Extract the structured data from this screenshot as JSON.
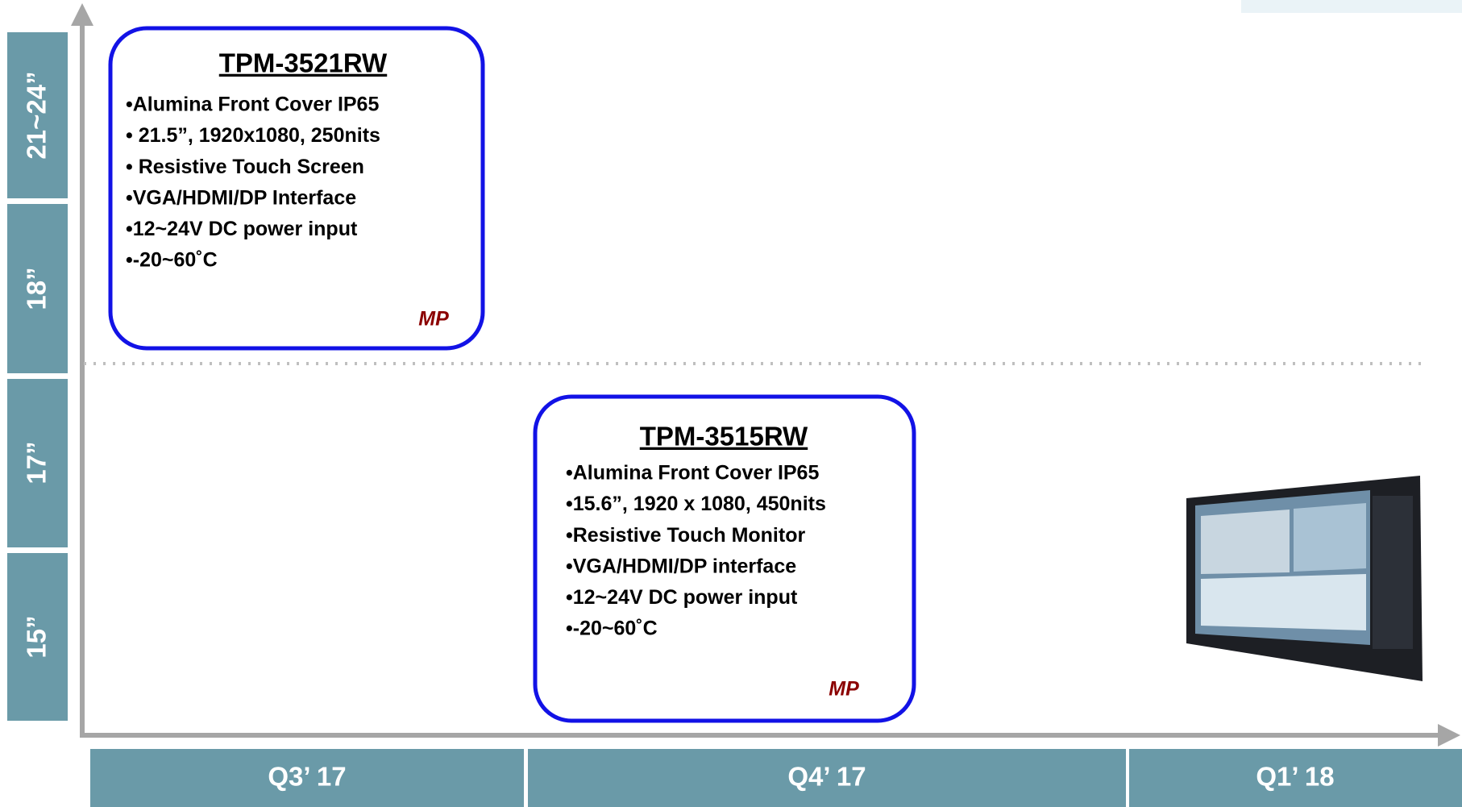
{
  "size_labels": [
    "21~24”",
    "18”",
    "17”",
    "15”"
  ],
  "quarters": [
    "Q3’ 17",
    "Q4’ 17",
    "Q1’ 18"
  ],
  "products": [
    {
      "title": "TPM-3521RW",
      "bullets": [
        "•Alumina Front Cover IP65",
        "• 21.5”,  1920x1080, 250nits",
        "• Resistive Touch Screen",
        "•VGA/HDMI/DP Interface",
        "•12~24V DC power input",
        "•-20~60˚C"
      ],
      "status": "MP"
    },
    {
      "title": "TPM-3515RW",
      "bullets": [
        "•Alumina Front Cover IP65",
        "•15.6”, 1920 x 1080, 450nits",
        "•Resistive Touch Monitor",
        "•VGA/HDMI/DP interface",
        "•12~24V DC power input",
        "•-20~60˚C"
      ],
      "status": "MP"
    }
  ]
}
